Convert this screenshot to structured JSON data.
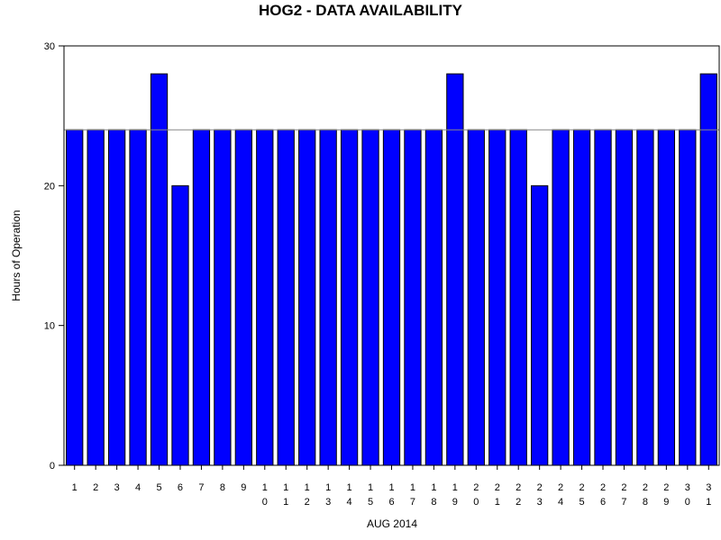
{
  "chart_data": {
    "type": "bar",
    "title": "HOG2 - DATA AVAILABILITY",
    "xlabel": "AUG 2014",
    "ylabel": "Hours of Operation",
    "categories": [
      "1",
      "2",
      "3",
      "4",
      "5",
      "6",
      "7",
      "8",
      "9",
      "10",
      "11",
      "12",
      "13",
      "14",
      "15",
      "16",
      "17",
      "18",
      "19",
      "20",
      "21",
      "22",
      "23",
      "24",
      "25",
      "26",
      "27",
      "28",
      "29",
      "30",
      "31"
    ],
    "values": [
      24,
      24,
      24,
      24,
      28,
      20,
      24,
      24,
      24,
      24,
      24,
      24,
      24,
      24,
      24,
      24,
      24,
      24,
      28,
      24,
      24,
      24,
      20,
      24,
      24,
      24,
      24,
      24,
      24,
      24,
      28
    ],
    "ylim": [
      0,
      30
    ],
    "yticks": [
      0,
      10,
      20,
      30
    ],
    "reference_line": 24,
    "bar_color": "#0000ff",
    "grid": false
  }
}
